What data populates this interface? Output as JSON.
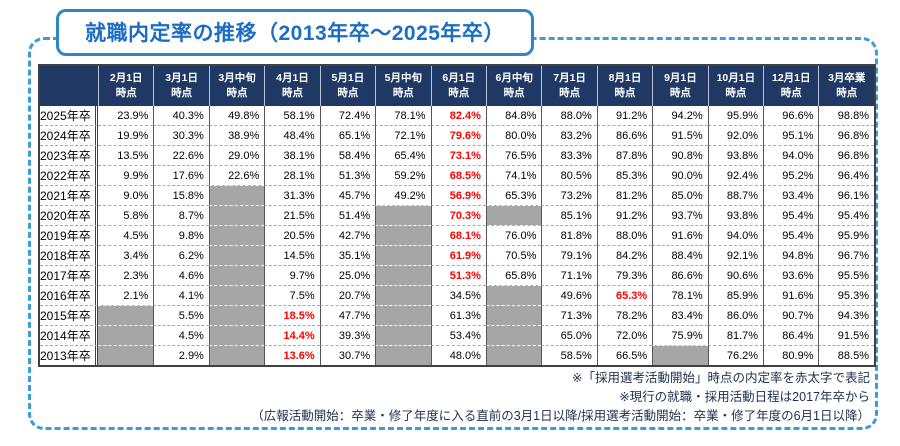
{
  "title": "就職内定率の推移（2013年卒～2025年卒）",
  "chart_data": {
    "type": "table",
    "title": "就職内定率の推移（2013年卒～2025年卒）",
    "corner_label": "",
    "columns": [
      [
        "2月1日",
        "時点"
      ],
      [
        "3月1日",
        "時点"
      ],
      [
        "3月中旬",
        "時点"
      ],
      [
        "4月1日",
        "時点"
      ],
      [
        "5月1日",
        "時点"
      ],
      [
        "5月中旬",
        "時点"
      ],
      [
        "6月1日",
        "時点"
      ],
      [
        "6月中旬",
        "時点"
      ],
      [
        "7月1日",
        "時点"
      ],
      [
        "8月1日",
        "時点"
      ],
      [
        "9月1日",
        "時点"
      ],
      [
        "10月1日",
        "時点"
      ],
      [
        "12月1日",
        "時点"
      ],
      [
        "3月卒業",
        "時点"
      ]
    ],
    "rows": [
      {
        "label": "2025年卒",
        "cells": [
          "23.9%",
          "40.3%",
          "49.8%",
          "58.1%",
          "72.4%",
          "78.1%",
          "*82.4%",
          "84.8%",
          "88.0%",
          "91.2%",
          "94.2%",
          "95.9%",
          "96.6%",
          "98.8%"
        ]
      },
      {
        "label": "2024年卒",
        "cells": [
          "19.9%",
          "30.3%",
          "38.9%",
          "48.4%",
          "65.1%",
          "72.1%",
          "*79.6%",
          "80.0%",
          "83.2%",
          "86.6%",
          "91.5%",
          "92.0%",
          "95.1%",
          "96.8%"
        ]
      },
      {
        "label": "2023年卒",
        "cells": [
          "13.5%",
          "22.6%",
          "29.0%",
          "38.1%",
          "58.4%",
          "65.4%",
          "*73.1%",
          "76.5%",
          "83.3%",
          "87.8%",
          "90.8%",
          "93.8%",
          "94.0%",
          "96.8%"
        ]
      },
      {
        "label": "2022年卒",
        "cells": [
          "9.9%",
          "17.6%",
          "22.6%",
          "28.1%",
          "51.3%",
          "59.2%",
          "*68.5%",
          "74.1%",
          "80.5%",
          "85.3%",
          "90.0%",
          "92.4%",
          "95.2%",
          "96.4%"
        ]
      },
      {
        "label": "2021年卒",
        "cells": [
          "9.0%",
          "15.8%",
          null,
          "31.3%",
          "45.7%",
          "49.2%",
          "*56.9%",
          "65.3%",
          "73.2%",
          "81.2%",
          "85.0%",
          "88.7%",
          "93.4%",
          "96.1%"
        ]
      },
      {
        "label": "2020年卒",
        "cells": [
          "5.8%",
          "8.7%",
          null,
          "21.5%",
          "51.4%",
          null,
          "*70.3%",
          null,
          "85.1%",
          "91.2%",
          "93.7%",
          "93.8%",
          "95.4%",
          "95.4%"
        ]
      },
      {
        "label": "2019年卒",
        "cells": [
          "4.5%",
          "9.8%",
          null,
          "20.5%",
          "42.7%",
          null,
          "*68.1%",
          "76.0%",
          "81.8%",
          "88.0%",
          "91.6%",
          "94.0%",
          "95.4%",
          "95.9%"
        ]
      },
      {
        "label": "2018年卒",
        "cells": [
          "3.4%",
          "6.2%",
          null,
          "14.5%",
          "35.1%",
          null,
          "*61.9%",
          "70.5%",
          "79.1%",
          "84.2%",
          "88.4%",
          "92.1%",
          "94.8%",
          "96.7%"
        ]
      },
      {
        "label": "2017年卒",
        "cells": [
          "2.3%",
          "4.6%",
          null,
          "9.7%",
          "25.0%",
          null,
          "*51.3%",
          "65.8%",
          "71.1%",
          "79.3%",
          "86.6%",
          "90.6%",
          "93.6%",
          "95.5%"
        ]
      },
      {
        "label": "2016年卒",
        "cells": [
          "2.1%",
          "4.1%",
          null,
          "7.5%",
          "20.7%",
          null,
          "34.5%",
          null,
          "49.6%",
          "*65.3%",
          "78.1%",
          "85.9%",
          "91.6%",
          "95.3%"
        ]
      },
      {
        "label": "2015年卒",
        "cells": [
          null,
          "5.5%",
          null,
          "*18.5%",
          "47.7%",
          null,
          "61.3%",
          null,
          "71.3%",
          "78.2%",
          "83.4%",
          "86.0%",
          "90.7%",
          "94.3%"
        ]
      },
      {
        "label": "2014年卒",
        "cells": [
          null,
          "4.5%",
          null,
          "*14.4%",
          "39.3%",
          null,
          "53.4%",
          null,
          "65.0%",
          "72.0%",
          "75.9%",
          "81.7%",
          "86.4%",
          "91.5%"
        ]
      },
      {
        "label": "2013年卒",
        "cells": [
          null,
          "2.9%",
          null,
          "*13.6%",
          "30.7%",
          null,
          "48.0%",
          null,
          "58.5%",
          "66.5%",
          null,
          "76.2%",
          "80.9%",
          "88.5%"
        ]
      }
    ]
  },
  "notes": [
    "※「採用選考活動開始」時点の内定率を赤太字で表記",
    "※現行の就職・採用活動日程は2017年卒から",
    "（広報活動開始：卒業・修了年度に入る直前の3月1日以降/採用選考活動開始：卒業・修了年度の6月1日以降）"
  ],
  "colors": {
    "header_bg": "#1f3864",
    "header_text": "#ffffff",
    "red_emphasis": "#ff0000",
    "empty_cell_gray": "#a6a6a6",
    "title_blue": "#1b6ec2",
    "frame_dashed_blue": "#3d9bd5"
  }
}
